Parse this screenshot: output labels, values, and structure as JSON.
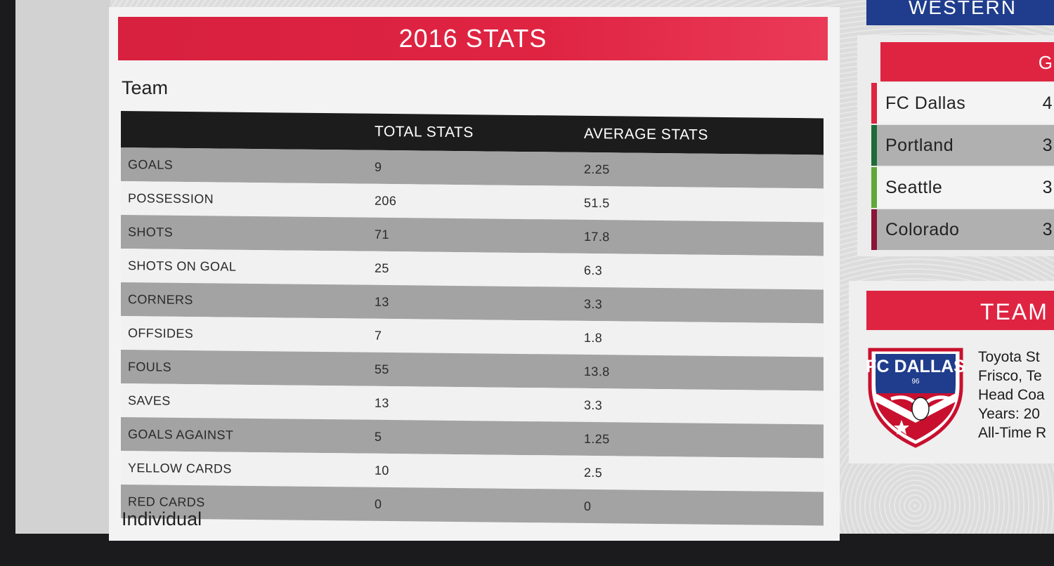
{
  "stats": {
    "title": "2016 STATS",
    "team_label": "Team",
    "individual_label": "Individual",
    "columns": [
      "",
      "TOTAL STATS",
      "AVERAGE STATS"
    ],
    "rows": [
      {
        "label": "GOALS",
        "total": "9",
        "average": "2.25"
      },
      {
        "label": "POSSESSION",
        "total": "206",
        "average": "51.5"
      },
      {
        "label": "SHOTS",
        "total": "71",
        "average": "17.8"
      },
      {
        "label": "SHOTS ON GOAL",
        "total": "25",
        "average": "6.3"
      },
      {
        "label": "CORNERS",
        "total": "13",
        "average": "3.3"
      },
      {
        "label": "OFFSIDES",
        "total": "7",
        "average": "1.8"
      },
      {
        "label": "FOULS",
        "total": "55",
        "average": "13.8"
      },
      {
        "label": "SAVES",
        "total": "13",
        "average": "3.3"
      },
      {
        "label": "GOALS AGAINST",
        "total": "5",
        "average": "1.25"
      },
      {
        "label": "YELLOW CARDS",
        "total": "10",
        "average": "2.5"
      },
      {
        "label": "RED CARDS",
        "total": "0",
        "average": "0"
      }
    ]
  },
  "standings": {
    "conference": "WESTERN",
    "title_fragment": "G",
    "teams": [
      {
        "name": "FC Dallas",
        "points": "4",
        "color": "#df2442"
      },
      {
        "name": "Portland",
        "points": "3",
        "color": "#1e6b3a"
      },
      {
        "name": "Seattle",
        "points": "3",
        "color": "#5fa83a"
      },
      {
        "name": "Colorado",
        "points": "3",
        "color": "#8a1538"
      }
    ]
  },
  "team": {
    "title": "TEAM",
    "crest_text": "FC DALLAS",
    "crest_number": "96",
    "info": [
      "Toyota St",
      "Frisco, Te",
      "Head Coa",
      "Years: 20",
      "All-Time R"
    ]
  },
  "colors": {
    "accent_red": "#df2442",
    "header_black": "#1c1c1c",
    "conference_blue": "#1f3d8c"
  }
}
